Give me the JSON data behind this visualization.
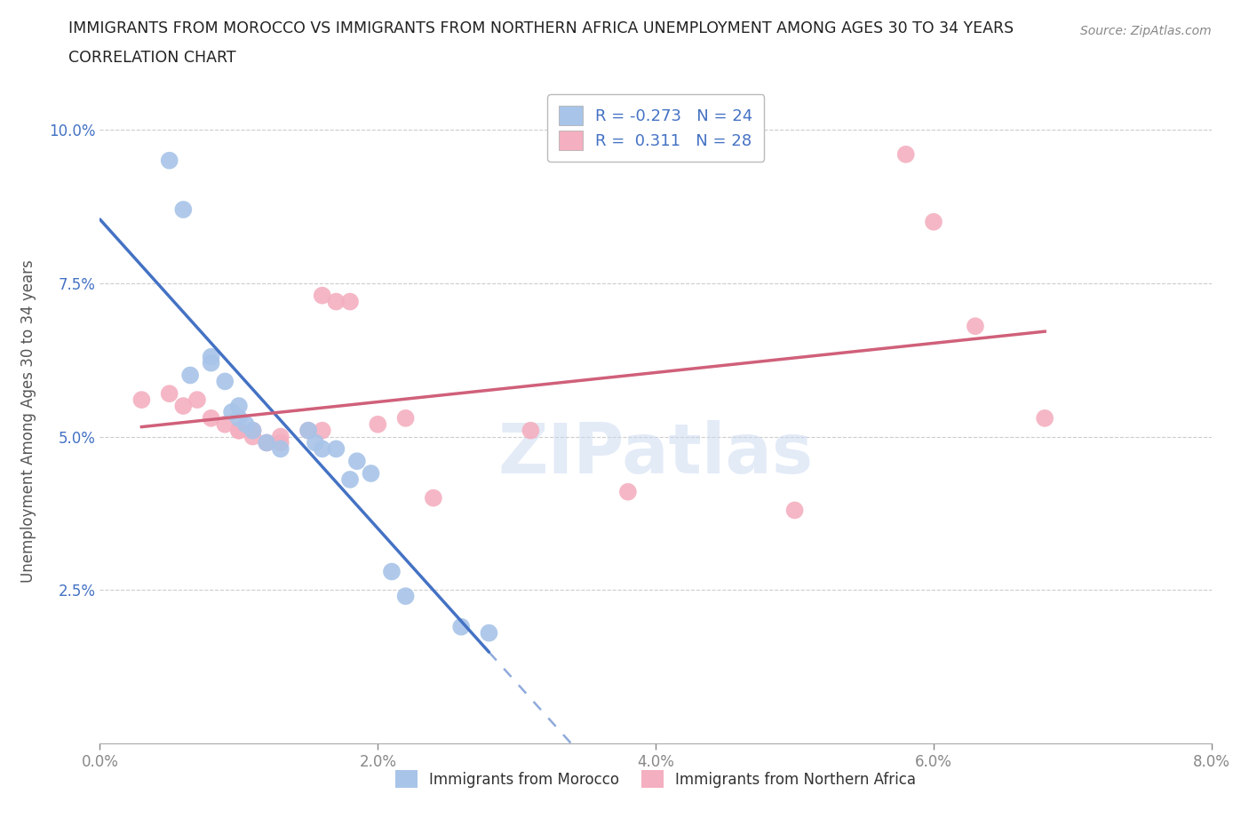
{
  "title_line1": "IMMIGRANTS FROM MOROCCO VS IMMIGRANTS FROM NORTHERN AFRICA UNEMPLOYMENT AMONG AGES 30 TO 34 YEARS",
  "title_line2": "CORRELATION CHART",
  "source": "Source: ZipAtlas.com",
  "ylabel": "Unemployment Among Ages 30 to 34 years",
  "xlim": [
    0.0,
    0.08
  ],
  "ylim": [
    0.0,
    0.105
  ],
  "xticks": [
    0.0,
    0.02,
    0.04,
    0.06,
    0.08
  ],
  "xticklabels": [
    "0.0%",
    "2.0%",
    "4.0%",
    "6.0%",
    "8.0%"
  ],
  "yticks": [
    0.025,
    0.05,
    0.075,
    0.1
  ],
  "yticklabels": [
    "2.5%",
    "5.0%",
    "7.5%",
    "10.0%"
  ],
  "legend_label1": "Immigrants from Morocco",
  "legend_label2": "Immigrants from Northern Africa",
  "R1": -0.273,
  "N1": 24,
  "R2": 0.311,
  "N2": 28,
  "color1": "#a8c4e8",
  "color2": "#f4afc0",
  "line_color1": "#4472c4",
  "line_color2": "#d0607a",
  "watermark": "ZIPatlas",
  "axis_label_color": "#4472c4",
  "blue_points_x": [
    0.005,
    0.006,
    0.0065,
    0.008,
    0.008,
    0.009,
    0.0095,
    0.01,
    0.01,
    0.0105,
    0.011,
    0.012,
    0.013,
    0.015,
    0.0155,
    0.016,
    0.017,
    0.018,
    0.0185,
    0.0195,
    0.021,
    0.022,
    0.026,
    0.028
  ],
  "blue_points_y": [
    0.095,
    0.087,
    0.06,
    0.062,
    0.063,
    0.059,
    0.054,
    0.055,
    0.053,
    0.052,
    0.051,
    0.049,
    0.048,
    0.051,
    0.049,
    0.048,
    0.048,
    0.043,
    0.046,
    0.044,
    0.028,
    0.024,
    0.019,
    0.018
  ],
  "pink_points_x": [
    0.003,
    0.005,
    0.006,
    0.007,
    0.008,
    0.009,
    0.01,
    0.01,
    0.011,
    0.011,
    0.012,
    0.013,
    0.013,
    0.015,
    0.016,
    0.016,
    0.017,
    0.018,
    0.02,
    0.022,
    0.024,
    0.031,
    0.038,
    0.05,
    0.058,
    0.06,
    0.063,
    0.068
  ],
  "pink_points_y": [
    0.056,
    0.057,
    0.055,
    0.056,
    0.053,
    0.052,
    0.051,
    0.051,
    0.051,
    0.05,
    0.049,
    0.05,
    0.049,
    0.051,
    0.051,
    0.073,
    0.072,
    0.072,
    0.052,
    0.053,
    0.04,
    0.051,
    0.041,
    0.038,
    0.096,
    0.085,
    0.068,
    0.053
  ]
}
